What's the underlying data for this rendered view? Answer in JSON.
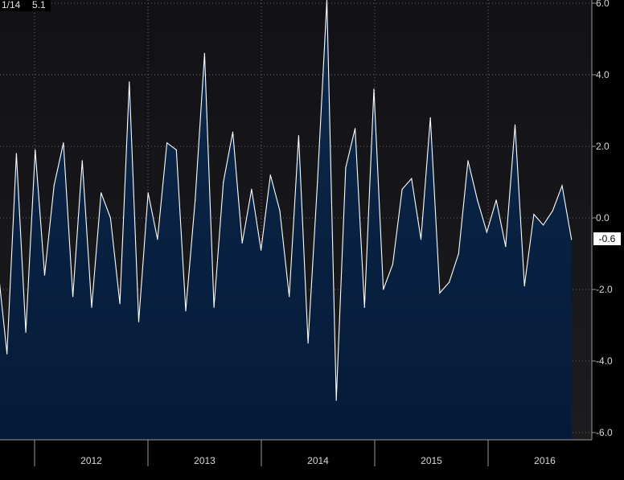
{
  "legend": {
    "period": "1/14",
    "value": "5.1"
  },
  "last_value_label": "-0.6",
  "chart_data": {
    "type": "area",
    "title": "",
    "xlabel": "",
    "ylabel": "",
    "ylim": [
      -6.0,
      6.0
    ],
    "y_ticks": [
      "6.0",
      "4.0",
      "2.0",
      "0.0",
      "-2.0",
      "-4.0",
      "-6.0"
    ],
    "x_ticks": [
      "2012",
      "2013",
      "2014",
      "2015",
      "2016"
    ],
    "grid": true,
    "series": [
      {
        "values": [
          -1.3,
          -3.8,
          1.8,
          -3.2,
          1.9,
          -1.6,
          0.9,
          2.1,
          -2.2,
          1.6,
          -2.5,
          0.7,
          0.0,
          -2.4,
          3.8,
          -2.9,
          0.7,
          -0.6,
          2.1,
          1.9,
          -2.6,
          0.5,
          4.6,
          -2.5,
          1.0,
          2.4,
          -0.7,
          0.8,
          -0.9,
          1.2,
          0.2,
          -2.2,
          2.3,
          -3.5,
          1.0,
          6.1,
          -5.1,
          1.4,
          2.5,
          -2.5,
          3.6,
          -2.0,
          -1.3,
          0.8,
          1.1,
          -0.6,
          2.8,
          -2.1,
          -1.8,
          -1.0,
          1.6,
          0.5,
          -0.4,
          0.5,
          -0.8,
          2.6,
          -1.9,
          0.1,
          -0.2,
          0.2,
          0.9,
          -0.6
        ]
      }
    ]
  },
  "colors": {
    "background_top": "#121116",
    "area_top": "#0d2a4c",
    "area_bottom": "#051a38",
    "line": "#ffffff",
    "grid": "#6a6a6a",
    "axis": "#9a9a9a"
  }
}
